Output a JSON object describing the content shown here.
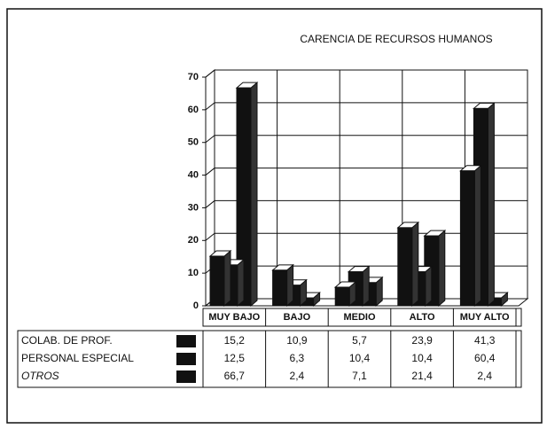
{
  "chart_data": {
    "type": "bar3d",
    "title": "CARENCIA DE RECURSOS HUMANOS",
    "categories": [
      "MUY BAJO",
      "BAJO",
      "MEDIO",
      "ALTO",
      "MUY ALTO"
    ],
    "series": [
      {
        "name": "COLAB. DE PROF.",
        "color": "#111111",
        "values": [
          15.2,
          10.9,
          5.7,
          23.9,
          41.3
        ],
        "value_labels": [
          "15,2",
          "10,9",
          "5,7",
          "23,9",
          "41,3"
        ]
      },
      {
        "name": "PERSONAL ESPECIAL",
        "color": "#111111",
        "values": [
          12.5,
          6.3,
          10.4,
          10.4,
          60.4
        ],
        "value_labels": [
          "12,5",
          "6,3",
          "10,4",
          "10,4",
          "60,4"
        ]
      },
      {
        "name": "OTROS",
        "color": "#111111",
        "values": [
          66.7,
          2.4,
          7.1,
          21.4,
          2.4
        ],
        "value_labels": [
          "66,7",
          "2,4",
          "7,1",
          "21,4",
          "2,4"
        ]
      }
    ],
    "ylim": [
      0,
      70
    ],
    "yticks": [
      0,
      10,
      20,
      30,
      40,
      50,
      60,
      70
    ],
    "grid": true
  }
}
